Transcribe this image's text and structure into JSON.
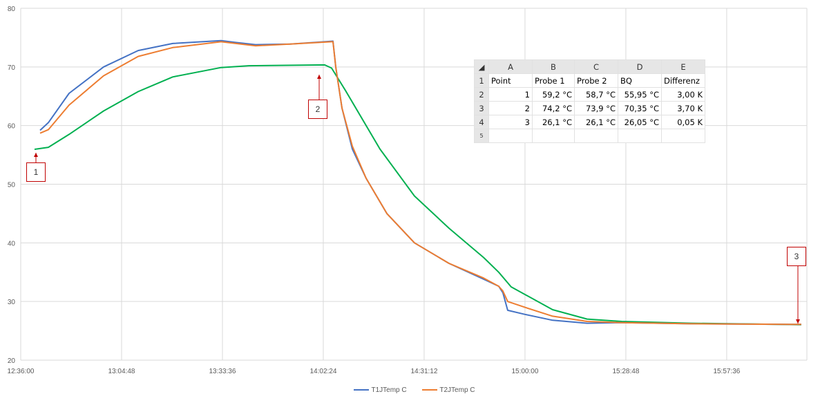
{
  "chart_data": {
    "type": "line",
    "xlim": [
      "12:36:00",
      "16:20:30"
    ],
    "ylim": [
      20,
      80
    ],
    "grid": true,
    "legend_position": "bottom",
    "x_ticks": [
      "12:36:00",
      "13:04:48",
      "13:33:36",
      "14:02:24",
      "14:31:12",
      "15:00:00",
      "15:28:48",
      "15:57:36"
    ],
    "y_ticks": [
      20,
      30,
      40,
      50,
      60,
      70,
      80
    ],
    "series": [
      {
        "name": "T1JTemp C",
        "color": "#4472c4",
        "points": [
          [
            "12:41:31",
            59.2
          ],
          [
            "12:43:53",
            60.5
          ],
          [
            "12:49:49",
            65.5
          ],
          [
            "12:59:40",
            70
          ],
          [
            "13:09:32",
            72.8
          ],
          [
            "13:19:24",
            74
          ],
          [
            "13:33:13",
            74.5
          ],
          [
            "13:37:09",
            74.2
          ],
          [
            "13:43:04",
            73.8
          ],
          [
            "13:52:56",
            73.9
          ],
          [
            "14:02:48",
            74.3
          ],
          [
            "14:05:10",
            74.4
          ],
          [
            "14:05:57",
            70
          ],
          [
            "14:07:44",
            63
          ],
          [
            "14:10:41",
            56
          ],
          [
            "14:14:38",
            51
          ],
          [
            "14:20:33",
            45
          ],
          [
            "14:28:26",
            40
          ],
          [
            "14:38:18",
            36.5
          ],
          [
            "14:48:10",
            33.8
          ],
          [
            "14:52:30",
            32.6
          ],
          [
            "14:53:41",
            31.5
          ],
          [
            "14:55:04",
            28.5
          ],
          [
            "15:00:00",
            27.8
          ],
          [
            "15:07:53",
            26.8
          ],
          [
            "15:17:45",
            26.3
          ],
          [
            "15:27:37",
            26.4
          ],
          [
            "15:47:20",
            26.2
          ],
          [
            "16:18:54",
            26.1
          ]
        ]
      },
      {
        "name": "T2JTemp C",
        "color": "#ed7d31",
        "points": [
          [
            "12:41:31",
            58.7
          ],
          [
            "12:43:53",
            59.3
          ],
          [
            "12:49:49",
            63.5
          ],
          [
            "12:59:40",
            68.5
          ],
          [
            "13:09:32",
            71.8
          ],
          [
            "13:19:24",
            73.3
          ],
          [
            "13:33:13",
            74.3
          ],
          [
            "13:43:04",
            73.6
          ],
          [
            "13:52:56",
            73.9
          ],
          [
            "14:04:46",
            74.3
          ],
          [
            "14:05:10",
            74.3
          ],
          [
            "14:05:57",
            70
          ],
          [
            "14:07:44",
            63
          ],
          [
            "14:10:41",
            56.5
          ],
          [
            "14:14:38",
            51
          ],
          [
            "14:20:33",
            45
          ],
          [
            "14:28:26",
            40
          ],
          [
            "14:38:18",
            36.5
          ],
          [
            "14:48:10",
            34
          ],
          [
            "14:52:30",
            32.6
          ],
          [
            "14:53:41",
            31.8
          ],
          [
            "14:55:04",
            30
          ],
          [
            "15:00:00",
            29
          ],
          [
            "15:07:53",
            27.5
          ],
          [
            "15:17:45",
            26.6
          ],
          [
            "15:27:37",
            26.4
          ],
          [
            "15:47:20",
            26.2
          ],
          [
            "16:18:54",
            26.1
          ]
        ]
      },
      {
        "color": "#00b050",
        "points": [
          [
            "12:39:57",
            55.95
          ],
          [
            "12:43:53",
            56.3
          ],
          [
            "12:49:49",
            58.5
          ],
          [
            "12:59:40",
            62.5
          ],
          [
            "13:09:32",
            65.8
          ],
          [
            "13:19:24",
            68.3
          ],
          [
            "13:33:13",
            69.9
          ],
          [
            "13:41:06",
            70.2
          ],
          [
            "14:02:48",
            70.35
          ],
          [
            "14:04:46",
            69.8
          ],
          [
            "14:08:43",
            66
          ],
          [
            "14:18:35",
            56
          ],
          [
            "14:28:26",
            48
          ],
          [
            "14:38:18",
            42.5
          ],
          [
            "14:48:10",
            37.5
          ],
          [
            "14:52:30",
            35
          ],
          [
            "14:56:03",
            32.5
          ],
          [
            "15:07:53",
            28.6
          ],
          [
            "15:17:45",
            27
          ],
          [
            "15:27:37",
            26.6
          ],
          [
            "15:47:20",
            26.3
          ],
          [
            "16:18:54",
            26.05
          ]
        ]
      }
    ],
    "annotations": [
      {
        "label": "1"
      },
      {
        "label": "2"
      },
      {
        "label": "3"
      }
    ],
    "annotation_color": "#c00000"
  },
  "table": {
    "columns": [
      "A",
      "B",
      "C",
      "D",
      "E"
    ],
    "rows": [
      {
        "n": "1",
        "cells": [
          "Point",
          "Probe 1",
          "Probe 2",
          "BQ",
          "Differenz"
        ]
      },
      {
        "n": "2",
        "cells": [
          "1",
          "59,2 °C",
          "58,7 °C",
          "55,95 °C",
          "3,00 K"
        ]
      },
      {
        "n": "3",
        "cells": [
          "2",
          "74,2 °C",
          "73,9 °C",
          "70,35 °C",
          "3,70 K"
        ]
      },
      {
        "n": "4",
        "cells": [
          "3",
          "26,1 °C",
          "26,1 °C",
          "26,05 °C",
          "0,05 K"
        ]
      }
    ],
    "partial_row": "5"
  }
}
